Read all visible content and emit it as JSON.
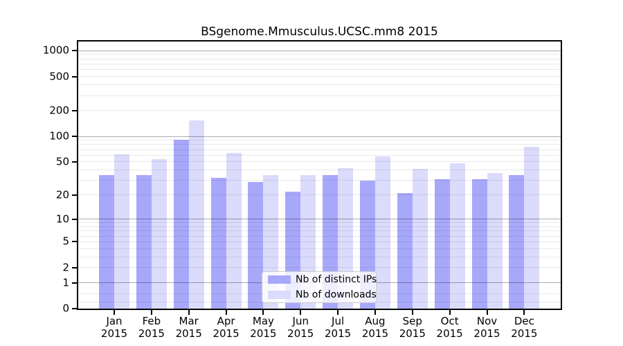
{
  "chart_data": {
    "type": "bar",
    "title": "BSgenome.Mmusculus.UCSC.mm8 2015",
    "categories": [
      "Jan",
      "Feb",
      "Mar",
      "Apr",
      "May",
      "Jun",
      "Jul",
      "Aug",
      "Sep",
      "Oct",
      "Nov",
      "Dec"
    ],
    "year_label": "2015",
    "series": [
      {
        "name": "Nb of distinct IPs",
        "color": "#a8a8fb",
        "values": [
          35,
          35,
          91,
          32,
          29,
          22,
          35,
          30,
          21,
          31,
          31,
          35
        ]
      },
      {
        "name": "Nb of downloads",
        "color": "#dbdbfb",
        "values": [
          61,
          54,
          153,
          64,
          35,
          35,
          42,
          58,
          41,
          48,
          37,
          75
        ]
      }
    ],
    "xlabel": "",
    "ylabel": "",
    "yscale": "log1p",
    "ylim": [
      0,
      1280
    ],
    "ytick_labels": [
      "0",
      "1",
      "2",
      "5",
      "10",
      "20",
      "50",
      "100",
      "200",
      "500",
      "1000"
    ],
    "ytick_values": [
      0,
      1,
      2,
      5,
      10,
      20,
      50,
      100,
      200,
      500,
      1000
    ],
    "grid": {
      "major_values": [
        1,
        10,
        100,
        1000
      ],
      "minor_values": [
        0.2,
        0.5,
        2,
        3,
        4,
        5,
        6,
        7,
        8,
        9,
        20,
        30,
        40,
        50,
        60,
        70,
        80,
        90,
        200,
        300,
        400,
        500,
        600,
        700,
        800,
        900
      ],
      "major_color": "rgba(0,0,0,0.33)",
      "minor_color": "rgba(0,0,0,0.085)"
    },
    "legend": {
      "position": "lower-center",
      "entries": [
        "Nb of distinct IPs",
        "Nb of downloads"
      ]
    },
    "frame_color": "#000000",
    "background_color": "#ffffff"
  }
}
